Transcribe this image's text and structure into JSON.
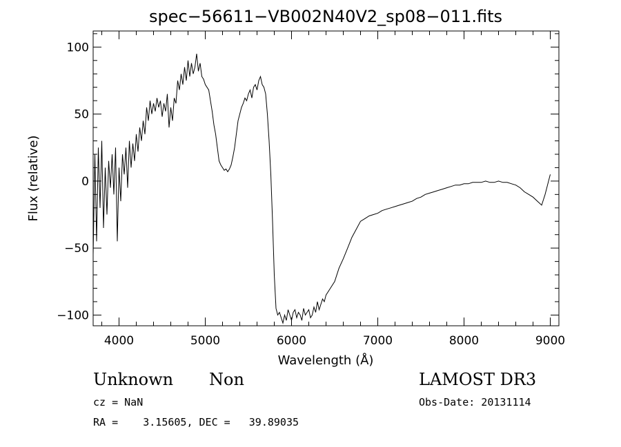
{
  "chart_data": {
    "type": "line",
    "title": "spec−56611−VB002N40V2_sp08−011.fits",
    "xlabel": "Wavelength (Å)",
    "ylabel": "Flux (relative)",
    "xlim": [
      3700,
      9100
    ],
    "ylim": [
      -108,
      112
    ],
    "x_ticks": [
      4000,
      5000,
      6000,
      7000,
      8000,
      9000
    ],
    "x_tick_labels": [
      "4000",
      "5000",
      "6000",
      "7000",
      "8000",
      "9000"
    ],
    "y_ticks": [
      100,
      50,
      0,
      -50,
      -100
    ],
    "y_tick_labels": [
      "100",
      "50",
      "0",
      "−50",
      "−100"
    ],
    "grid": false,
    "legend": "none",
    "series": [
      {
        "x": [
          3700,
          3720,
          3740,
          3760,
          3780,
          3800,
          3820,
          3840,
          3860,
          3880,
          3900,
          3920,
          3940,
          3960,
          3980,
          4000,
          4020,
          4040,
          4060,
          4080,
          4100,
          4120,
          4140,
          4160,
          4180,
          4200,
          4220,
          4240,
          4260,
          4280,
          4300,
          4320,
          4340,
          4360,
          4380,
          4400,
          4420,
          4440,
          4460,
          4480,
          4500,
          4520,
          4540,
          4560,
          4580,
          4600,
          4620,
          4640,
          4660,
          4680,
          4700,
          4720,
          4740,
          4760,
          4780,
          4800,
          4820,
          4840,
          4860,
          4880,
          4900,
          4920,
          4940,
          4960,
          4980,
          5000,
          5020,
          5040,
          5060,
          5080,
          5100,
          5120,
          5140,
          5160,
          5180,
          5200,
          5220,
          5240,
          5260,
          5280,
          5300,
          5320,
          5340,
          5360,
          5380,
          5400,
          5420,
          5440,
          5460,
          5480,
          5500,
          5520,
          5540,
          5560,
          5580,
          5600,
          5620,
          5640,
          5660,
          5680,
          5700,
          5720,
          5740,
          5760,
          5780,
          5800,
          5820,
          5840,
          5860,
          5880,
          5900,
          5920,
          5940,
          5960,
          5980,
          6000,
          6020,
          6040,
          6060,
          6080,
          6100,
          6120,
          6140,
          6160,
          6180,
          6200,
          6220,
          6240,
          6260,
          6280,
          6300,
          6320,
          6340,
          6360,
          6380,
          6400,
          6450,
          6500,
          6550,
          6600,
          6650,
          6700,
          6750,
          6800,
          6850,
          6900,
          6950,
          7000,
          7050,
          7100,
          7150,
          7200,
          7250,
          7300,
          7350,
          7400,
          7450,
          7500,
          7550,
          7600,
          7650,
          7700,
          7750,
          7800,
          7850,
          7900,
          7950,
          8000,
          8050,
          8100,
          8150,
          8200,
          8250,
          8300,
          8350,
          8400,
          8450,
          8500,
          8550,
          8600,
          8650,
          8700,
          8750,
          8800,
          8850,
          8900,
          8920,
          8940,
          8960,
          8980,
          9000
        ],
        "y": [
          -55,
          20,
          -45,
          25,
          -20,
          30,
          -35,
          10,
          -25,
          15,
          -5,
          20,
          -10,
          25,
          -45,
          10,
          -15,
          20,
          5,
          25,
          -5,
          30,
          10,
          28,
          15,
          35,
          22,
          40,
          30,
          45,
          35,
          55,
          45,
          60,
          50,
          58,
          52,
          62,
          55,
          60,
          48,
          58,
          52,
          65,
          40,
          55,
          45,
          62,
          58,
          75,
          68,
          80,
          72,
          85,
          75,
          90,
          78,
          88,
          80,
          85,
          95,
          82,
          88,
          78,
          76,
          72,
          70,
          68,
          60,
          52,
          42,
          35,
          25,
          15,
          12,
          10,
          8,
          9,
          7,
          9,
          12,
          18,
          25,
          35,
          45,
          50,
          55,
          58,
          62,
          60,
          65,
          68,
          62,
          70,
          72,
          68,
          75,
          78,
          72,
          70,
          65,
          50,
          30,
          5,
          -30,
          -70,
          -95,
          -100,
          -98,
          -102,
          -106,
          -100,
          -104,
          -96,
          -100,
          -104,
          -98,
          -96,
          -102,
          -98,
          -100,
          -104,
          -95,
          -100,
          -98,
          -96,
          -102,
          -100,
          -94,
          -98,
          -90,
          -96,
          -92,
          -88,
          -90,
          -85,
          -80,
          -75,
          -65,
          -58,
          -50,
          -42,
          -36,
          -30,
          -28,
          -26,
          -25,
          -24,
          -22,
          -21,
          -20,
          -19,
          -18,
          -17,
          -16,
          -15,
          -13,
          -12,
          -10,
          -9,
          -8,
          -7,
          -6,
          -5,
          -4,
          -3,
          -3,
          -2,
          -2,
          -1,
          -1,
          -1,
          0,
          -1,
          -1,
          0,
          -1,
          -1,
          -2,
          -3,
          -5,
          -8,
          -10,
          -12,
          -15,
          -18,
          -14,
          -10,
          -5,
          0,
          5
        ]
      }
    ]
  },
  "annotations": {
    "object_class": "Unknown",
    "subclass": "Non",
    "survey": "LAMOST DR3",
    "redshift": "cz = NaN",
    "obs_date": "Obs-Date: 20131114",
    "coords": "RA =    3.15605, DEC =   39.89035"
  }
}
